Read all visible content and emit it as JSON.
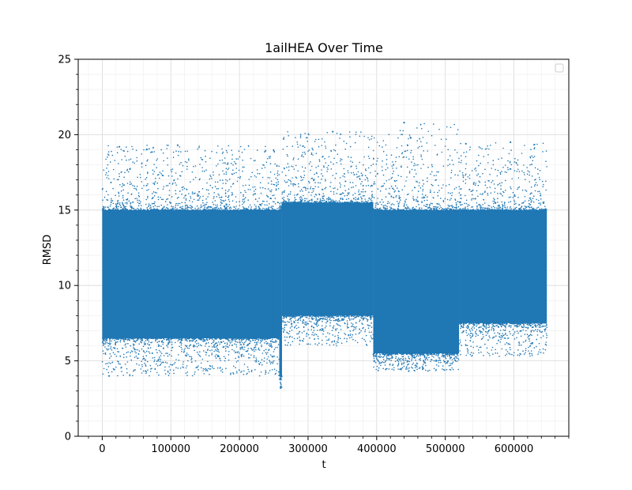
{
  "chart_data": {
    "type": "scatter",
    "title": "1ailHEA Over Time",
    "xlabel": "t",
    "ylabel": "RMSD",
    "xlim": [
      -35000,
      680000
    ],
    "ylim": [
      0,
      25
    ],
    "xticks": [
      0,
      100000,
      200000,
      300000,
      400000,
      500000,
      600000
    ],
    "yticks": [
      0,
      5,
      10,
      15,
      20,
      25
    ],
    "grid": true,
    "minor_ticks": true,
    "legend": "top-right, empty",
    "color": "#1f77b4",
    "x_range_of_data": [
      0,
      648000
    ],
    "segments": [
      {
        "t_start": 0,
        "t_end": 258000,
        "core_range": [
          6.5,
          15.0
        ],
        "outlier_range": [
          4.0,
          19.3
        ]
      },
      {
        "t_start": 258000,
        "t_end": 262000,
        "core_range": [
          4.0,
          15.0
        ],
        "outlier_range": [
          3.2,
          15.5
        ]
      },
      {
        "t_start": 262000,
        "t_end": 395000,
        "core_range": [
          8.0,
          15.5
        ],
        "outlier_range": [
          6.0,
          20.2
        ]
      },
      {
        "t_start": 395000,
        "t_end": 520000,
        "core_range": [
          5.5,
          15.0
        ],
        "outlier_range": [
          4.3,
          20.8
        ]
      },
      {
        "t_start": 520000,
        "t_end": 648000,
        "core_range": [
          7.5,
          15.0
        ],
        "outlier_range": [
          5.3,
          19.5
        ]
      }
    ],
    "notable_points": [
      {
        "x": 10000,
        "y": 4.0
      },
      {
        "x": 25000,
        "y": 19.2
      },
      {
        "x": 110000,
        "y": 19.3
      },
      {
        "x": 260000,
        "y": 3.2
      },
      {
        "x": 336000,
        "y": 20.2
      },
      {
        "x": 440000,
        "y": 20.8
      },
      {
        "x": 445000,
        "y": 19.3
      },
      {
        "x": 530000,
        "y": 19.4
      },
      {
        "x": 595000,
        "y": 19.5
      }
    ]
  }
}
